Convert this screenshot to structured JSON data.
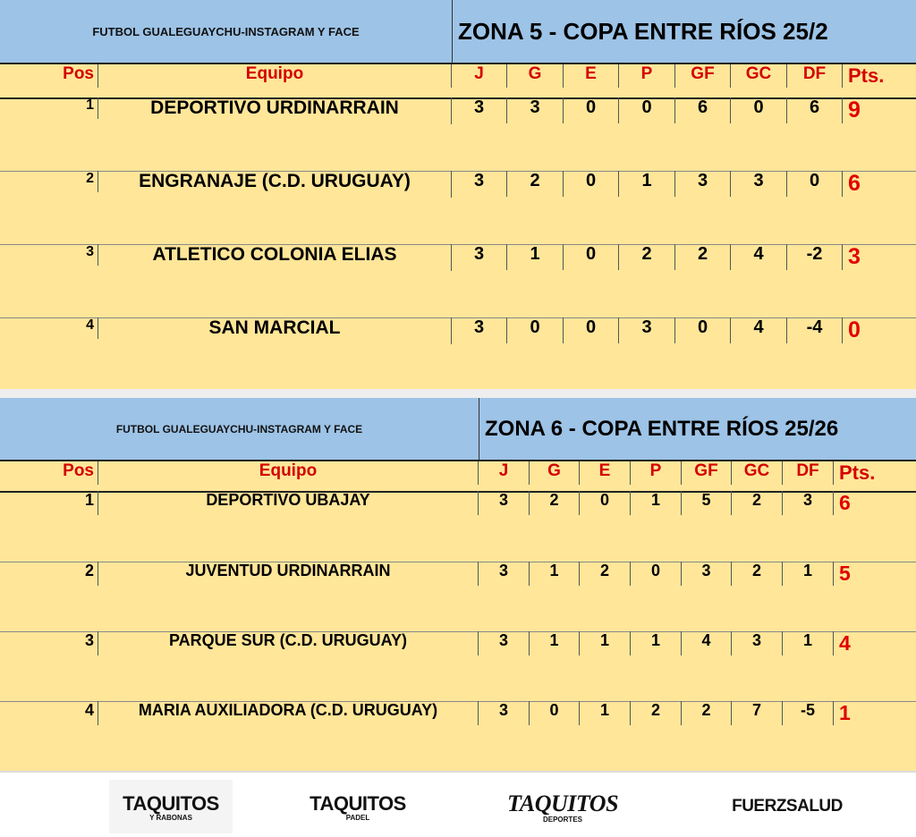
{
  "colors": {
    "band": "#9dc3e6",
    "table": "#ffe699",
    "header_text": "#d40000",
    "points": "#e00000"
  },
  "tables": [
    {
      "brand": "FUTBOL GUALEGUAYCHU-INSTAGRAM Y FACE",
      "title": "ZONA 5 - COPA ENTRE RÍOS 25/2",
      "headers": [
        "Pos",
        "Equipo",
        "J",
        "G",
        "E",
        "P",
        "GF",
        "GC",
        "DF",
        "Pts."
      ],
      "rows": [
        [
          "1",
          "DEPORTIVO URDINARRAIN",
          "3",
          "3",
          "0",
          "0",
          "6",
          "0",
          "6",
          "9"
        ],
        [
          "2",
          "ENGRANAJE (C.D. URUGUAY)",
          "3",
          "2",
          "0",
          "1",
          "3",
          "3",
          "0",
          "6"
        ],
        [
          "3",
          "ATLETICO COLONIA ELIAS",
          "3",
          "1",
          "0",
          "2",
          "2",
          "4",
          "-2",
          "3"
        ],
        [
          "4",
          "SAN MARCIAL",
          "3",
          "0",
          "0",
          "3",
          "0",
          "4",
          "-4",
          "0"
        ]
      ]
    },
    {
      "brand": "FUTBOL GUALEGUAYCHU-INSTAGRAM Y FACE",
      "title": "ZONA 6 - COPA ENTRE RÍOS 25/26",
      "headers": [
        "Pos",
        "Equipo",
        "J",
        "G",
        "E",
        "P",
        "GF",
        "GC",
        "DF",
        "Pts."
      ],
      "rows": [
        [
          "1",
          "DEPORTIVO UBAJAY",
          "3",
          "2",
          "0",
          "1",
          "5",
          "2",
          "3",
          "6"
        ],
        [
          "2",
          "JUVENTUD URDINARRAIN",
          "3",
          "1",
          "2",
          "0",
          "3",
          "2",
          "1",
          "5"
        ],
        [
          "3",
          "PARQUE SUR (C.D. URUGUAY)",
          "3",
          "1",
          "1",
          "1",
          "4",
          "3",
          "1",
          "4"
        ],
        [
          "4",
          "MARIA AUXILIADORA (C.D. URUGUAY)",
          "3",
          "0",
          "1",
          "2",
          "2",
          "7",
          "-5",
          "1"
        ]
      ]
    }
  ],
  "sponsors": [
    {
      "name": "TAQUITOS",
      "sub": "Y RABONAS"
    },
    {
      "name": "TAQUITOS",
      "sub": "PADEL"
    },
    {
      "name": "TAQUITOS",
      "sub": "DEPORTES"
    },
    {
      "name": "FUERZSALUD",
      "sub": ""
    }
  ]
}
